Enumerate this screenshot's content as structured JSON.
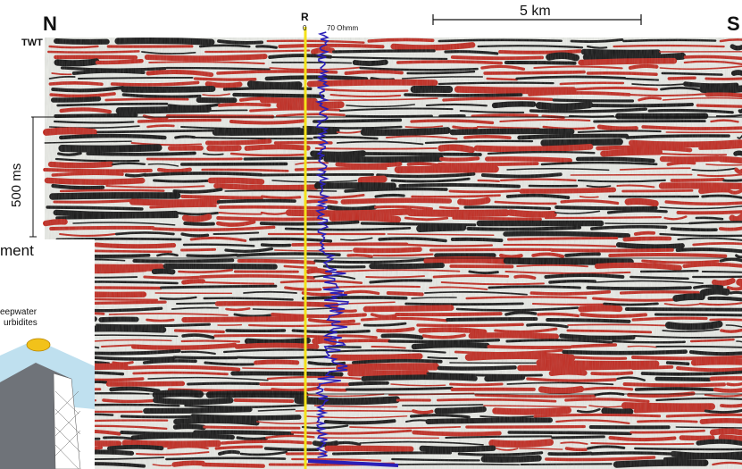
{
  "figure": {
    "north_label": "N",
    "south_label": "S",
    "twt_label": "TWT",
    "time_scale_label": "500 ms",
    "distance_scale_label": "5 km",
    "log": {
      "curve_label": "R",
      "min_label": "0",
      "max_label": "70 Ohmm"
    }
  },
  "inset": {
    "title_fragment": "ment",
    "line1": "eepwater",
    "line2": "urbidites"
  },
  "colors": {
    "peak": "#c0281e",
    "trough": "#141414",
    "background": "#e9ebe6",
    "log_curve": "#2a1fb8",
    "marker_line": "#f4e21a"
  }
}
